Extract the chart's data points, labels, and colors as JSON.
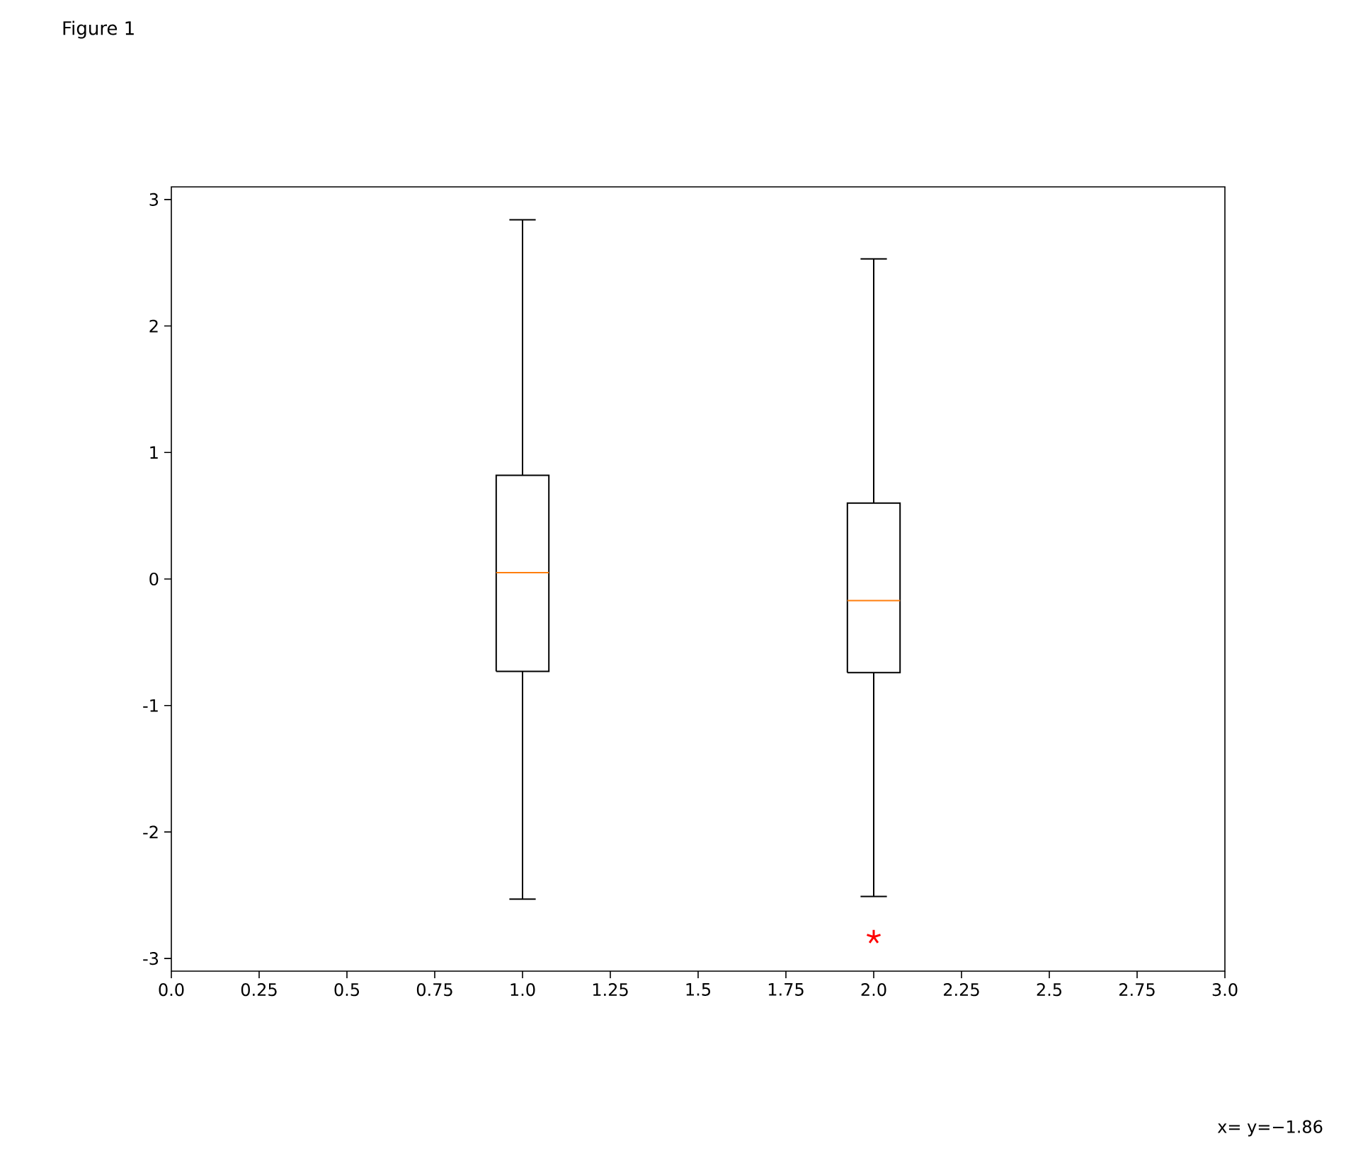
{
  "chart_data": {
    "type": "box",
    "title": "Figure 1",
    "x": [
      1,
      2
    ],
    "color": "#000000",
    "marker": "star",
    "boxes": [
      {
        "low": -2.53,
        "q1": -0.73,
        "median": 0.05,
        "q3": 0.82,
        "high": 2.84
      },
      {
        "low": -2.51,
        "q1": -0.74,
        "median": -0.17,
        "q3": 0.6,
        "high": 2.53,
        "outliers": [
          -2.83
        ]
      }
    ],
    "xlim": [
      0,
      3
    ],
    "ylim": [
      -3.1,
      3.1
    ],
    "xticks": [
      {
        "value": 0,
        "label": "0.0"
      },
      0.25,
      0.5,
      0.75,
      {
        "value": 1,
        "label": "1.0"
      },
      1.25,
      1.5,
      1.75,
      {
        "value": 2,
        "label": "2.0"
      },
      2.25,
      2.5,
      2.75,
      {
        "value": 3,
        "label": "3.0"
      }
    ],
    "yticks": [
      -3,
      -2,
      -1,
      0,
      1,
      2,
      3
    ],
    "annotations": [
      "x= y=−1.86"
    ]
  }
}
